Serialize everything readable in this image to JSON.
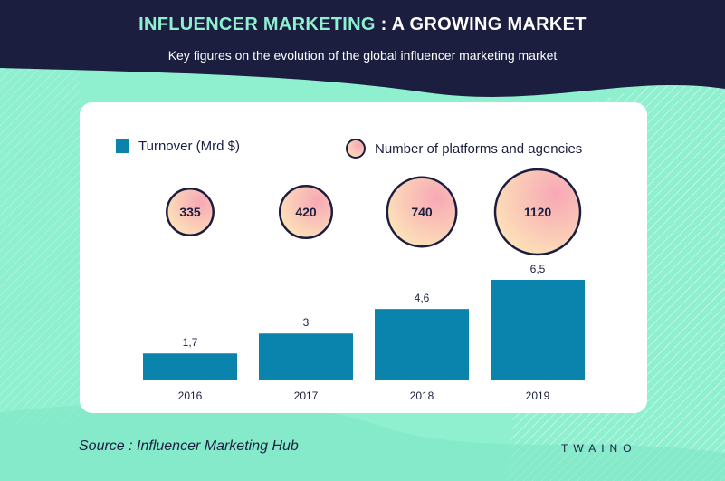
{
  "header": {
    "title_accent": "INFLUENCER MARKETING",
    "title_rest": " : A GROWING MARKET",
    "subtitle": "Key figures on the evolution of the global influencer marketing market"
  },
  "colors": {
    "navy": "#1b1e3f",
    "mint": "#8ff0cf",
    "bar": "#0a84ad",
    "bubble_pink": "#f7a8b6",
    "bubble_cream": "#fde6b8"
  },
  "chart_data": {
    "type": "bar",
    "categories": [
      "2016",
      "2017",
      "2018",
      "2019"
    ],
    "series": [
      {
        "name": "Turnover (Mrd $)",
        "values": [
          1.7,
          3,
          4.6,
          6.5
        ],
        "labels": [
          "1,7",
          "3",
          "4,6",
          "6,5"
        ]
      },
      {
        "name": "Number of platforms and agencies",
        "values": [
          335,
          420,
          740,
          1120
        ],
        "labels": [
          "335",
          "420",
          "740",
          "1120"
        ]
      }
    ],
    "ylim": [
      0,
      6.5
    ]
  },
  "footer": {
    "source": "Source : Influencer Marketing Hub",
    "logo": "TWAINO"
  }
}
